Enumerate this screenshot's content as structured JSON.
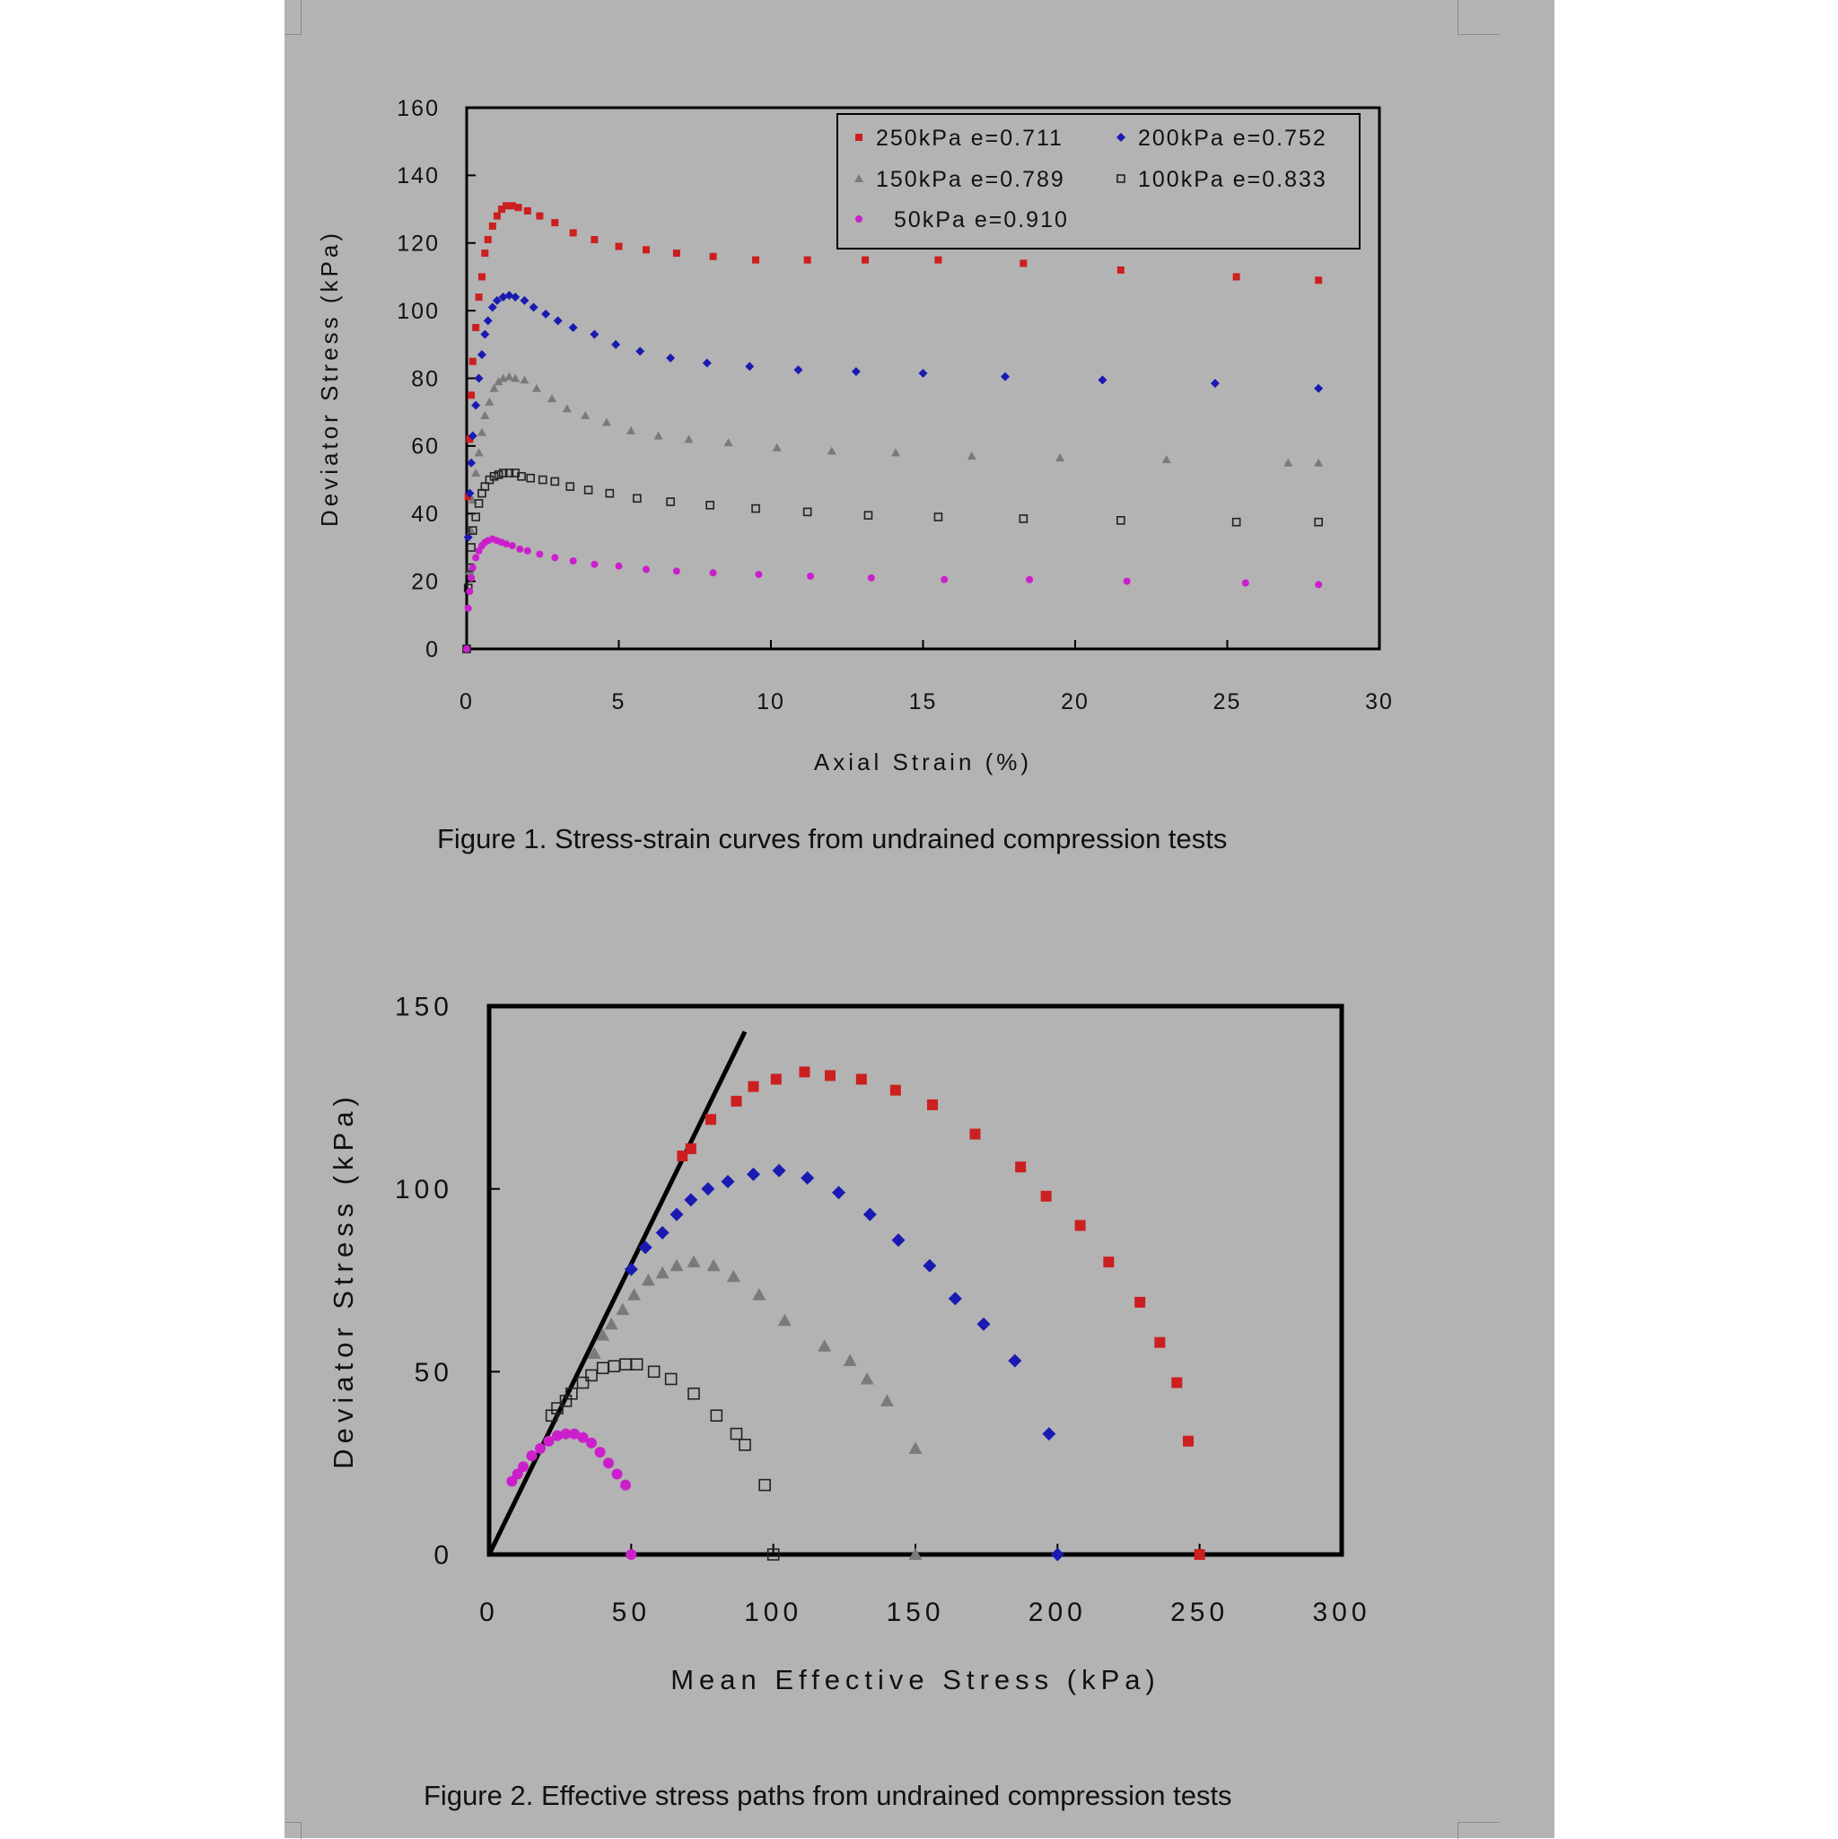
{
  "figures": [
    {
      "caption": "Figure 1.  Stress-strain curves from undrained compression tests"
    },
    {
      "caption": "Figure 2.  Effective stress paths from undrained compression tests"
    }
  ],
  "chart_data": [
    {
      "type": "scatter",
      "xlabel": "Axial Strain (%)",
      "ylabel": "Deviator Stress (kPa)",
      "xlim": [
        0,
        30
      ],
      "ylim": [
        0,
        160
      ],
      "xticks": [
        "0",
        "5",
        "10",
        "15",
        "20",
        "25",
        "30"
      ],
      "yticks": [
        "0",
        "20",
        "40",
        "60",
        "80",
        "100",
        "120",
        "140",
        "160"
      ],
      "grid": false,
      "legend_position": "top-right",
      "series": [
        {
          "name": "250kPa e=0.711",
          "marker": "square",
          "color": "#cc1f1f",
          "x": [
            0,
            0.05,
            0.1,
            0.15,
            0.2,
            0.3,
            0.4,
            0.5,
            0.6,
            0.7,
            0.85,
            1.0,
            1.15,
            1.3,
            1.5,
            1.7,
            2.0,
            2.4,
            2.9,
            3.5,
            4.2,
            5.0,
            5.9,
            6.9,
            8.1,
            9.5,
            11.2,
            13.1,
            15.5,
            18.3,
            21.5,
            25.3,
            28.0
          ],
          "y": [
            0,
            45,
            62,
            75,
            85,
            95,
            104,
            110,
            117,
            121,
            125,
            128,
            130,
            131,
            131,
            130.5,
            129.5,
            128,
            126,
            123,
            121,
            119,
            118,
            117,
            116,
            115,
            115,
            115,
            115,
            114,
            112,
            110,
            109
          ]
        },
        {
          "name": "200kPa e=0.752",
          "marker": "diamond",
          "color": "#1a1ab3",
          "x": [
            0,
            0.05,
            0.1,
            0.15,
            0.2,
            0.3,
            0.4,
            0.5,
            0.6,
            0.7,
            0.85,
            1.0,
            1.2,
            1.4,
            1.6,
            1.9,
            2.2,
            2.6,
            3.0,
            3.5,
            4.2,
            4.9,
            5.7,
            6.7,
            7.9,
            9.3,
            10.9,
            12.8,
            15.0,
            17.7,
            20.9,
            24.6,
            28.0
          ],
          "y": [
            0,
            33,
            46,
            55,
            63,
            72,
            80,
            87,
            93,
            97,
            101,
            103,
            104,
            104.5,
            104,
            103,
            101,
            99,
            97,
            95,
            93,
            90,
            88,
            86,
            84.5,
            83.5,
            82.5,
            82,
            81.5,
            80.5,
            79.5,
            78.5,
            77
          ]
        },
        {
          "name": "150kPa e=0.789",
          "marker": "triangle",
          "color": "#7a7a7a",
          "x": [
            0,
            0.1,
            0.15,
            0.2,
            0.3,
            0.4,
            0.5,
            0.6,
            0.75,
            0.9,
            1.05,
            1.2,
            1.4,
            1.6,
            1.9,
            2.3,
            2.8,
            3.3,
            3.9,
            4.6,
            5.4,
            6.3,
            7.3,
            8.6,
            10.2,
            12.0,
            14.1,
            16.6,
            19.5,
            23.0,
            27.0,
            28.0
          ],
          "y": [
            0,
            23,
            35,
            44,
            52,
            58,
            64,
            69,
            73,
            77,
            79,
            80,
            80.5,
            80,
            79.5,
            77,
            74,
            71,
            69,
            67,
            64.5,
            63,
            62,
            61,
            59.5,
            58.5,
            58,
            57,
            56.5,
            56,
            55,
            55
          ]
        },
        {
          "name": "100kPa e=0.833",
          "marker": "open-square",
          "color": "#222222",
          "x": [
            0,
            0.05,
            0.1,
            0.15,
            0.2,
            0.3,
            0.4,
            0.5,
            0.6,
            0.75,
            0.9,
            1.05,
            1.2,
            1.4,
            1.6,
            1.8,
            2.1,
            2.5,
            2.9,
            3.4,
            4.0,
            4.7,
            5.6,
            6.7,
            8.0,
            9.5,
            11.2,
            13.2,
            15.5,
            18.3,
            21.5,
            25.3,
            28.0
          ],
          "y": [
            0,
            18,
            24,
            30,
            35,
            39,
            43,
            46,
            48,
            50,
            51,
            51.5,
            52,
            52,
            52,
            51,
            50.5,
            50,
            49.5,
            48,
            47,
            46,
            44.5,
            43.5,
            42.5,
            41.5,
            40.5,
            39.5,
            39,
            38.5,
            38,
            37.5,
            37.5
          ]
        },
        {
          "name": "50kPa e=0.910",
          "marker": "circle",
          "color": "#cc1fcc",
          "x": [
            0,
            0.05,
            0.1,
            0.15,
            0.2,
            0.3,
            0.4,
            0.5,
            0.6,
            0.7,
            0.85,
            1.0,
            1.15,
            1.3,
            1.5,
            1.75,
            2.0,
            2.4,
            2.9,
            3.5,
            4.2,
            5.0,
            5.9,
            6.9,
            8.1,
            9.6,
            11.3,
            13.3,
            15.7,
            18.5,
            21.7,
            25.6,
            28.0
          ],
          "y": [
            0,
            12,
            17,
            21,
            24,
            27,
            29,
            30.5,
            31.5,
            32,
            32.5,
            32,
            31.5,
            31,
            30.5,
            29.5,
            29,
            28,
            27,
            26,
            25,
            24.5,
            23.5,
            23,
            22.5,
            22,
            21.5,
            21,
            20.5,
            20.5,
            20,
            19.5,
            19
          ]
        }
      ]
    },
    {
      "type": "scatter",
      "xlabel": "Mean Effective Stress (kPa)",
      "ylabel": "Deviator Stress (kPa)",
      "xlim": [
        0,
        300
      ],
      "ylim": [
        0,
        150
      ],
      "xticks": [
        "0",
        "50",
        "100",
        "150",
        "200",
        "250",
        "300"
      ],
      "yticks": [
        "0",
        "50",
        "100",
        "150"
      ],
      "grid": false,
      "line": {
        "x": [
          0,
          90
        ],
        "y": [
          0,
          143
        ]
      },
      "series": [
        {
          "name": "250kPa e=0.711",
          "marker": "square",
          "color": "#cc1f1f",
          "x": [
            250,
            246,
            242,
            236,
            229,
            218,
            208,
            196,
            187,
            171,
            156,
            143,
            131,
            120,
            111,
            101,
            93,
            87,
            78,
            71,
            68
          ],
          "y": [
            0,
            31,
            47,
            58,
            69,
            80,
            90,
            98,
            106,
            115,
            123,
            127,
            130,
            131,
            132,
            130,
            128,
            124,
            119,
            111,
            109
          ]
        },
        {
          "name": "200kPa e=0.752",
          "marker": "diamond",
          "color": "#1a1ab3",
          "x": [
            200,
            197,
            185,
            174,
            164,
            155,
            144,
            134,
            123,
            112,
            102,
            93,
            84,
            77,
            71,
            66,
            61,
            55,
            50
          ],
          "y": [
            0,
            33,
            53,
            63,
            70,
            79,
            86,
            93,
            99,
            103,
            105,
            104,
            102,
            100,
            97,
            93,
            88,
            84,
            78
          ]
        },
        {
          "name": "150kPa e=0.789",
          "marker": "triangle",
          "color": "#7a7a7a",
          "x": [
            150,
            150,
            140,
            133,
            127,
            118,
            104,
            95,
            86,
            79,
            72,
            66,
            61,
            56,
            51,
            47,
            43,
            40,
            37
          ],
          "y": [
            0,
            29,
            42,
            48,
            53,
            57,
            64,
            71,
            76,
            79,
            80,
            79,
            77,
            75,
            71,
            67,
            63,
            60,
            55
          ]
        },
        {
          "name": "100kPa e=0.833",
          "marker": "open-square",
          "color": "#222222",
          "x": [
            100,
            97,
            90,
            87,
            80,
            72,
            64,
            58,
            52,
            48,
            44,
            40,
            36,
            33,
            29,
            27,
            24,
            22
          ],
          "y": [
            0,
            19,
            30,
            33,
            38,
            44,
            48,
            50,
            52,
            52,
            51.5,
            51,
            49,
            47,
            44,
            42,
            40,
            38
          ]
        },
        {
          "name": "50kPa e=0.910",
          "marker": "circle",
          "color": "#cc1fcc",
          "x": [
            50,
            48,
            45,
            42,
            39,
            36,
            33,
            30,
            27,
            24,
            21,
            18,
            15,
            12,
            10,
            8
          ],
          "y": [
            0,
            19,
            22,
            25,
            28,
            30.5,
            32,
            33,
            33,
            32.5,
            31,
            29,
            27,
            24,
            22,
            20
          ]
        }
      ]
    }
  ]
}
